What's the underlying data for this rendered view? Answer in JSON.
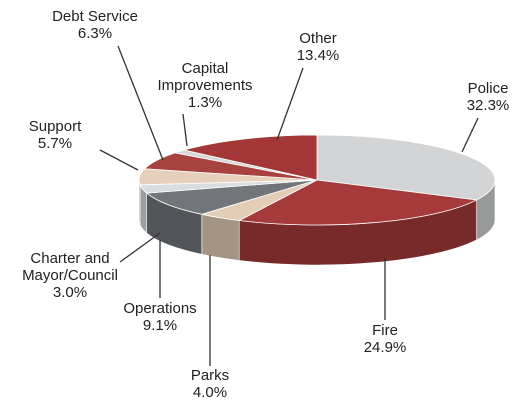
{
  "chart_data": {
    "type": "pie3d",
    "categories": [
      "Police",
      "Fire",
      "Parks",
      "Operations",
      "Charter and Mayor/Council",
      "Support",
      "Debt Service",
      "Capital Improvements",
      "Other"
    ],
    "values": [
      32.3,
      24.9,
      4.0,
      9.1,
      3.0,
      5.7,
      6.3,
      1.3,
      13.4
    ],
    "value_labels": [
      "32.3%",
      "24.9%",
      "4.0%",
      "9.1%",
      "3.0%",
      "5.7%",
      "6.3%",
      "1.3%",
      "13.4%"
    ],
    "colors": [
      "#d3d4d6",
      "#a63a3a",
      "#e3cdb6",
      "#72767b",
      "#d9dde1",
      "#e6d0bc",
      "#a8423e",
      "#d8d8d8",
      "#a33636"
    ]
  }
}
